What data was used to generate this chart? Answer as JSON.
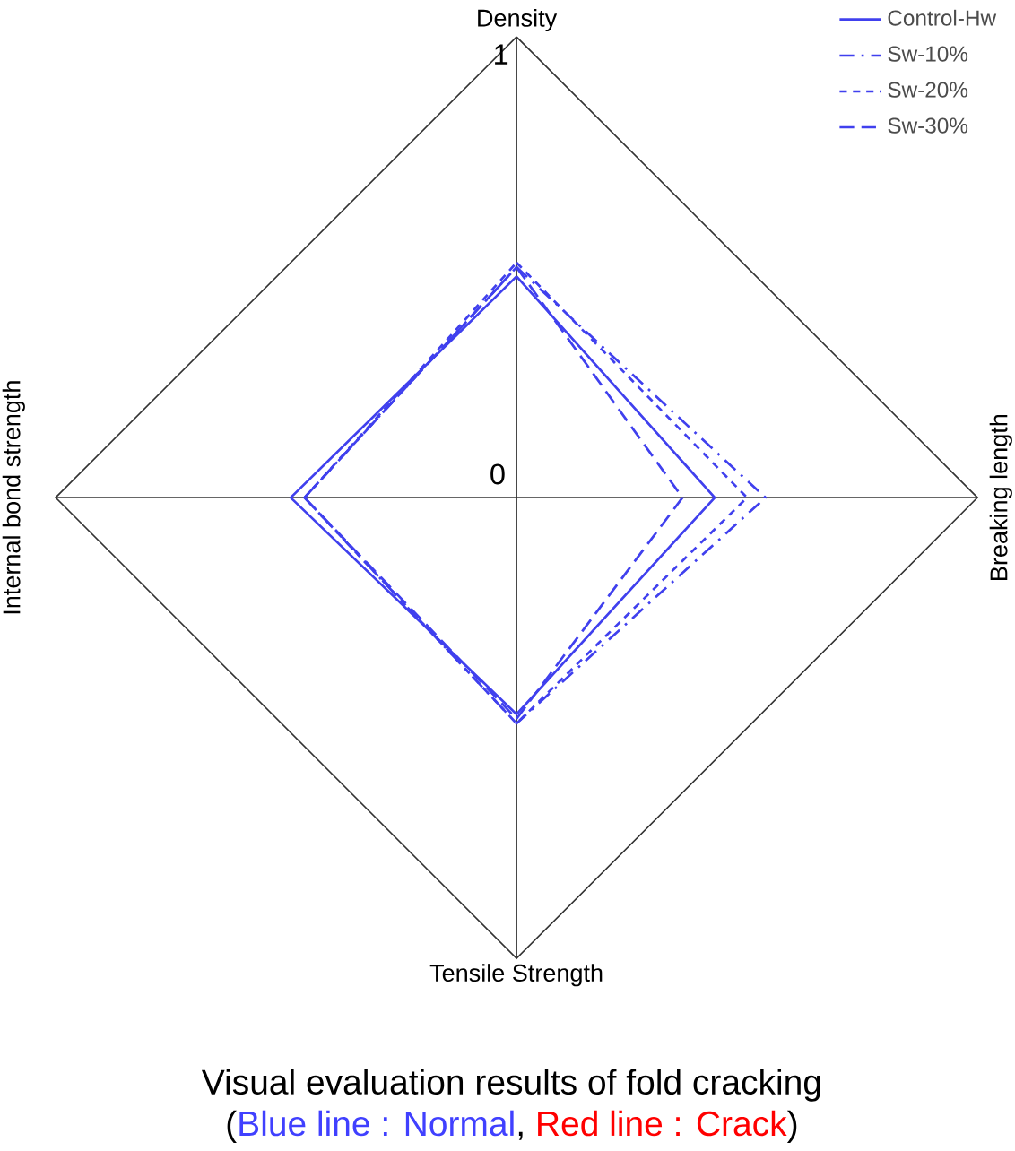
{
  "chart_data": {
    "type": "radar",
    "title": "Visual evaluation results of fold cracking",
    "annotations": [
      "(",
      "Blue line : Normal",
      ", ",
      "Red line : Crack",
      ")"
    ],
    "categories": [
      "Density",
      "Breaking length",
      "Tensile Strength",
      "Internal bond strength"
    ],
    "ylim": [
      0,
      1
    ],
    "yticks": [
      0,
      1
    ],
    "grid": true,
    "legend": "top right",
    "series": [
      {
        "name": "Control-Hw",
        "color": "#4040ee",
        "line_style": "solid",
        "values": [
          0.48,
          0.43,
          0.47,
          0.49
        ]
      },
      {
        "name": "Sw-10%",
        "color": "#4040ee",
        "line_style": "dashdot",
        "values": [
          0.5,
          0.54,
          0.49,
          0.46
        ]
      },
      {
        "name": "Sw-20%",
        "color": "#4040ee",
        "line_style": "dotted",
        "values": [
          0.51,
          0.5,
          0.49,
          0.46
        ]
      },
      {
        "name": "Sw-30%",
        "color": "#4040ee",
        "line_style": "dashed",
        "values": [
          0.5,
          0.36,
          0.48,
          0.46
        ]
      }
    ]
  }
}
